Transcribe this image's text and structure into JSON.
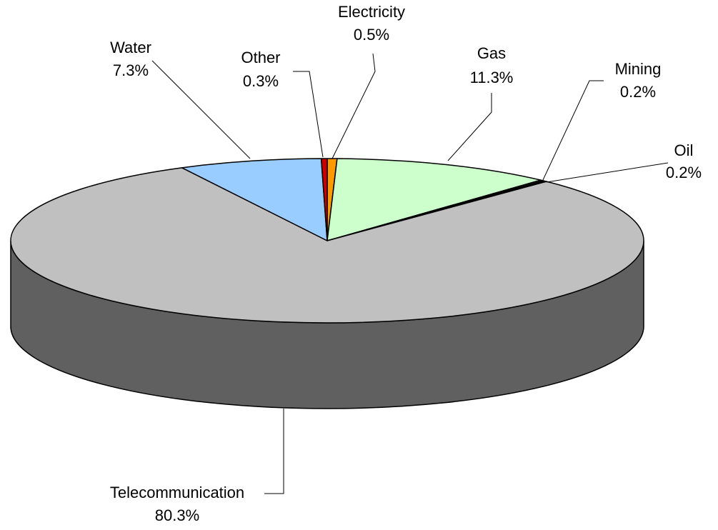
{
  "chart_data": {
    "type": "pie3d",
    "categories": [
      "Electricity",
      "Gas",
      "Mining",
      "Oil",
      "Telecommunication",
      "Water",
      "Other"
    ],
    "values": [
      0.5,
      11.3,
      0.2,
      0.2,
      80.3,
      7.3,
      0.3
    ],
    "value_labels": [
      "0.5%",
      "11.3%",
      "0.2%",
      "0.2%",
      "80.3%",
      "7.3%",
      "0.3%"
    ],
    "colors": [
      "#ff9900",
      "#ccffcc",
      "#333333",
      "#000000",
      "#c0c0c0",
      "#99ccff",
      "#cc0000"
    ]
  }
}
